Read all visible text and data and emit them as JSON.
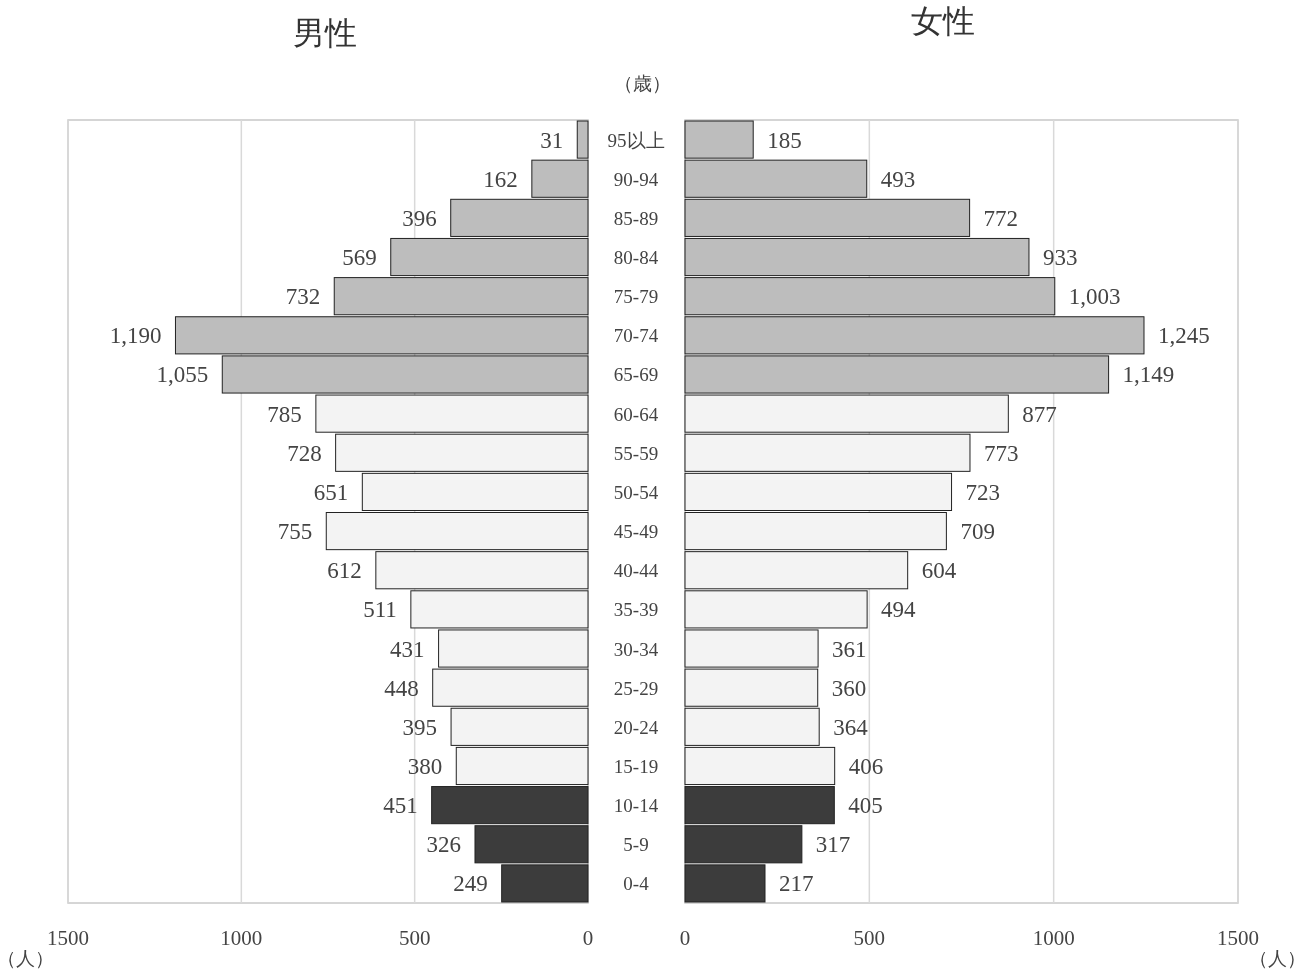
{
  "chart_data": [
    {
      "type": "bar",
      "orientation": "horizontal",
      "title": "男性",
      "ylabel": "（歳）",
      "xlabel": "（人）",
      "categories": [
        null,
        null,
        null,
        null,
        null,
        null,
        null,
        null,
        null,
        null,
        null,
        null,
        null,
        null,
        null,
        null,
        null,
        null,
        null,
        null
      ],
      "values": [
        31,
        162,
        396,
        569,
        732,
        1190,
        1055,
        785,
        728,
        651,
        755,
        612,
        511,
        431,
        448,
        395,
        380,
        451,
        326,
        249
      ],
      "colors": [
        "#bdbdbd",
        "#bdbdbd",
        "#bdbdbd",
        "#bdbdbd",
        "#bdbdbd",
        "#bdbdbd",
        "#bdbdbd",
        "#f3f3f3",
        "#f3f3f3",
        "#f3f3f3",
        "#f3f3f3",
        "#f3f3f3",
        "#f3f3f3",
        "#f3f3f3",
        "#f3f3f3",
        "#f3f3f3",
        "#f3f3f3",
        "#3c3c3c",
        "#3c3c3c",
        "#3c3c3c"
      ],
      "value_labels": [
        "31",
        "162",
        "396",
        "569",
        "732",
        "1,190",
        "1,055",
        "785",
        "728",
        "651",
        "755",
        "612",
        "511",
        "431",
        "448",
        "395",
        "380",
        "451",
        "326",
        "249"
      ],
      "xlim": [
        1500,
        0
      ],
      "xticks": [
        1500,
        1000,
        500,
        0
      ],
      "grid": "x"
    },
    {
      "type": "bar",
      "orientation": "horizontal",
      "title": "女性",
      "xlabel": "（人）",
      "categories": [
        "95以上",
        "90-94",
        "85-89",
        "80-84",
        "75-79",
        "70-74",
        "65-69",
        "60-64",
        "55-59",
        "50-54",
        "45-49",
        "40-44",
        "35-39",
        "30-34",
        "25-29",
        "20-24",
        "15-19",
        "10-14",
        "5-9",
        "0-4"
      ],
      "values": [
        185,
        493,
        772,
        933,
        1003,
        1245,
        1149,
        877,
        773,
        723,
        709,
        604,
        494,
        361,
        360,
        364,
        406,
        405,
        317,
        217
      ],
      "colors": [
        "#bdbdbd",
        "#bdbdbd",
        "#bdbdbd",
        "#bdbdbd",
        "#bdbdbd",
        "#bdbdbd",
        "#bdbdbd",
        "#f3f3f3",
        "#f3f3f3",
        "#f3f3f3",
        "#f3f3f3",
        "#f3f3f3",
        "#f3f3f3",
        "#f3f3f3",
        "#f3f3f3",
        "#f3f3f3",
        "#f3f3f3",
        "#3c3c3c",
        "#3c3c3c",
        "#3c3c3c"
      ],
      "value_labels": [
        "185",
        "493",
        "772",
        "933",
        "1,003",
        "1,245",
        "1,149",
        "877",
        "773",
        "723",
        "709",
        "604",
        "494",
        "361",
        "360",
        "364",
        "406",
        "405",
        "317",
        "217"
      ],
      "xlim": [
        0,
        1500
      ],
      "xticks": [
        0,
        500,
        1000,
        1500
      ],
      "grid": "x"
    }
  ]
}
